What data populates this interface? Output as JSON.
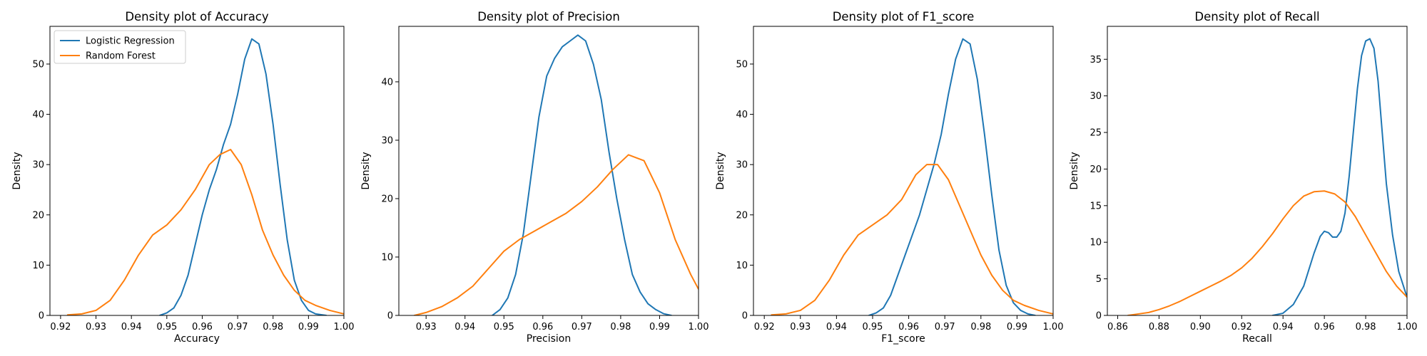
{
  "figure": {
    "legend": {
      "placement": "upper-left",
      "shown_in_panel": 0,
      "frame": true
    },
    "grid": false
  },
  "series_colors": {
    "Logistic Regression": "#1f77b4",
    "Random Forest": "#ff7f0e"
  },
  "chart_data": [
    {
      "type": "line",
      "title": "Density plot of Accuracy",
      "xlabel": "Accuracy",
      "ylabel": "Density",
      "xlim": [
        0.917,
        1.0
      ],
      "ylim": [
        0,
        57.5
      ],
      "xticks": [
        "0.92",
        "0.93",
        "0.94",
        "0.95",
        "0.96",
        "0.97",
        "0.98",
        "0.99",
        "1.00"
      ],
      "xtick_values": [
        0.92,
        0.93,
        0.94,
        0.95,
        0.96,
        0.97,
        0.98,
        0.99,
        1.0
      ],
      "yticks": [
        "0",
        "10",
        "20",
        "30",
        "40",
        "50"
      ],
      "ytick_values": [
        0,
        10,
        20,
        30,
        40,
        50
      ],
      "series": [
        {
          "name": "Logistic Regression",
          "x": [
            0.948,
            0.95,
            0.952,
            0.954,
            0.956,
            0.958,
            0.96,
            0.962,
            0.964,
            0.966,
            0.968,
            0.97,
            0.972,
            0.974,
            0.976,
            0.978,
            0.98,
            0.982,
            0.984,
            0.986,
            0.988,
            0.99,
            0.992,
            0.995
          ],
          "y": [
            0,
            0.5,
            1.5,
            4,
            8,
            14,
            20,
            25,
            29,
            34,
            38,
            44,
            51,
            55,
            54,
            48,
            38,
            26,
            15,
            7,
            3,
            1,
            0.3,
            0
          ]
        },
        {
          "name": "Random Forest",
          "x": [
            0.922,
            0.926,
            0.93,
            0.934,
            0.938,
            0.942,
            0.946,
            0.95,
            0.954,
            0.958,
            0.962,
            0.965,
            0.968,
            0.971,
            0.974,
            0.977,
            0.98,
            0.983,
            0.986,
            0.989,
            0.992,
            0.996,
            1.0
          ],
          "y": [
            0.1,
            0.3,
            1,
            3,
            7,
            12,
            16,
            18,
            21,
            25,
            30,
            32,
            33,
            30,
            24,
            17,
            12,
            8,
            5,
            3,
            2,
            1,
            0.3
          ]
        }
      ]
    },
    {
      "type": "line",
      "title": "Density plot of Precision",
      "xlabel": "Precision",
      "ylabel": "Density",
      "xlim": [
        0.923,
        1.0
      ],
      "ylim": [
        0,
        49.5
      ],
      "xticks": [
        "0.93",
        "0.94",
        "0.95",
        "0.96",
        "0.97",
        "0.98",
        "0.99",
        "1.00"
      ],
      "xtick_values": [
        0.93,
        0.94,
        0.95,
        0.96,
        0.97,
        0.98,
        0.99,
        1.0
      ],
      "yticks": [
        "0",
        "10",
        "20",
        "30",
        "40"
      ],
      "ytick_values": [
        0,
        10,
        20,
        30,
        40
      ],
      "series": [
        {
          "name": "Logistic Regression",
          "x": [
            0.947,
            0.949,
            0.951,
            0.953,
            0.955,
            0.957,
            0.959,
            0.961,
            0.963,
            0.965,
            0.967,
            0.969,
            0.971,
            0.973,
            0.975,
            0.977,
            0.979,
            0.981,
            0.983,
            0.985,
            0.987,
            0.989,
            0.991,
            0.993
          ],
          "y": [
            0,
            1,
            3,
            7,
            14,
            24,
            34,
            41,
            44,
            46,
            47,
            48,
            47,
            43,
            37,
            28,
            20,
            13,
            7,
            4,
            2,
            1,
            0.3,
            0
          ]
        },
        {
          "name": "Random Forest",
          "x": [
            0.927,
            0.93,
            0.934,
            0.938,
            0.942,
            0.946,
            0.95,
            0.954,
            0.958,
            0.962,
            0.966,
            0.97,
            0.974,
            0.978,
            0.982,
            0.986,
            0.99,
            0.994,
            0.998,
            1.0
          ],
          "y": [
            0,
            0.5,
            1.5,
            3,
            5,
            8,
            11,
            13,
            14.5,
            16,
            17.5,
            19.5,
            22,
            25,
            27.5,
            26.5,
            21,
            13,
            7,
            4.5
          ]
        }
      ]
    },
    {
      "type": "line",
      "title": "Density plot of F1_score",
      "xlabel": "F1_score",
      "ylabel": "Density",
      "xlim": [
        0.917,
        1.0
      ],
      "ylim": [
        0,
        57.5
      ],
      "xticks": [
        "0.92",
        "0.93",
        "0.94",
        "0.95",
        "0.96",
        "0.97",
        "0.98",
        "0.99",
        "1.00"
      ],
      "xtick_values": [
        0.92,
        0.93,
        0.94,
        0.95,
        0.96,
        0.97,
        0.98,
        0.99,
        1.0
      ],
      "yticks": [
        "0",
        "10",
        "20",
        "30",
        "40",
        "50"
      ],
      "ytick_values": [
        0,
        10,
        20,
        30,
        40,
        50
      ],
      "series": [
        {
          "name": "Logistic Regression",
          "x": [
            0.949,
            0.951,
            0.953,
            0.955,
            0.957,
            0.959,
            0.961,
            0.963,
            0.965,
            0.967,
            0.969,
            0.971,
            0.973,
            0.975,
            0.977,
            0.979,
            0.981,
            0.983,
            0.985,
            0.987,
            0.989,
            0.991,
            0.993,
            0.995
          ],
          "y": [
            0,
            0.5,
            1.5,
            4,
            8,
            12,
            16,
            20,
            25,
            30,
            36,
            44,
            51,
            55,
            54,
            47,
            36,
            24,
            13,
            6,
            2.5,
            1,
            0.3,
            0
          ]
        },
        {
          "name": "Random Forest",
          "x": [
            0.922,
            0.926,
            0.93,
            0.934,
            0.938,
            0.942,
            0.946,
            0.95,
            0.954,
            0.958,
            0.962,
            0.965,
            0.968,
            0.971,
            0.974,
            0.977,
            0.98,
            0.983,
            0.986,
            0.989,
            0.992,
            0.996,
            1.0
          ],
          "y": [
            0.1,
            0.3,
            1,
            3,
            7,
            12,
            16,
            18,
            20,
            23,
            28,
            30,
            30,
            27,
            22,
            17,
            12,
            8,
            5,
            3,
            2,
            1,
            0.3
          ]
        }
      ]
    },
    {
      "type": "line",
      "title": "Density plot of Recall",
      "xlabel": "Recall",
      "ylabel": "Density",
      "xlim": [
        0.855,
        1.0
      ],
      "ylim": [
        0,
        39.5
      ],
      "xticks": [
        "0.86",
        "0.88",
        "0.90",
        "0.92",
        "0.94",
        "0.96",
        "0.98",
        "1.00"
      ],
      "xtick_values": [
        0.86,
        0.88,
        0.9,
        0.92,
        0.94,
        0.96,
        0.98,
        1.0
      ],
      "yticks": [
        "0",
        "5",
        "10",
        "15",
        "20",
        "25",
        "30",
        "35"
      ],
      "ytick_values": [
        0,
        5,
        10,
        15,
        20,
        25,
        30,
        35
      ],
      "series": [
        {
          "name": "Logistic Regression",
          "x": [
            0.935,
            0.94,
            0.945,
            0.95,
            0.955,
            0.958,
            0.96,
            0.962,
            0.964,
            0.966,
            0.968,
            0.97,
            0.972,
            0.974,
            0.976,
            0.978,
            0.98,
            0.982,
            0.984,
            0.986,
            0.988,
            0.99,
            0.993,
            0.996,
            1.0
          ],
          "y": [
            0,
            0.3,
            1.5,
            4,
            8.5,
            10.8,
            11.5,
            11.3,
            10.7,
            10.7,
            11.5,
            14,
            19,
            25,
            31,
            35.5,
            37.5,
            37.8,
            36.5,
            32,
            25,
            18,
            11,
            6,
            2.5
          ]
        },
        {
          "name": "Random Forest",
          "x": [
            0.865,
            0.87,
            0.875,
            0.88,
            0.885,
            0.89,
            0.895,
            0.9,
            0.905,
            0.91,
            0.915,
            0.92,
            0.925,
            0.93,
            0.935,
            0.94,
            0.945,
            0.95,
            0.955,
            0.96,
            0.965,
            0.97,
            0.975,
            0.98,
            0.985,
            0.99,
            0.995,
            1.0
          ],
          "y": [
            0,
            0.2,
            0.4,
            0.8,
            1.3,
            1.9,
            2.6,
            3.3,
            4,
            4.7,
            5.5,
            6.5,
            7.8,
            9.4,
            11.2,
            13.2,
            15,
            16.3,
            16.9,
            17,
            16.6,
            15.5,
            13.5,
            11,
            8.5,
            6,
            4,
            2.5
          ]
        }
      ]
    }
  ]
}
